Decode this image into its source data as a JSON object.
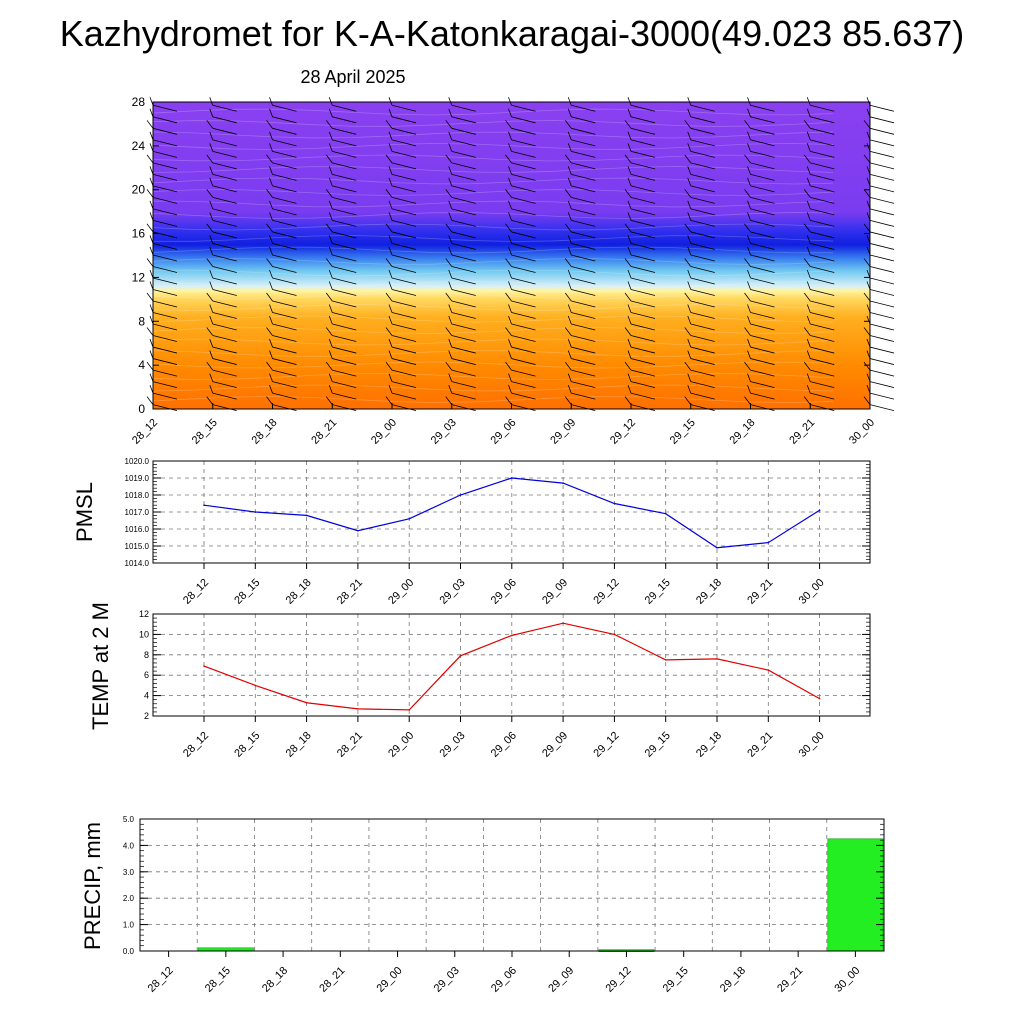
{
  "page": {
    "title": "Kazhydromet for K-A-Katonkaragai-3000(49.023 85.637)",
    "subtitle": "28 April 2025"
  },
  "chart_data": [
    {
      "type": "heatmap",
      "id": "cross-section",
      "x": [
        "28_12",
        "28_15",
        "28_18",
        "28_21",
        "29_00",
        "29_03",
        "29_06",
        "29_09",
        "29_12",
        "29_15",
        "29_18",
        "29_21",
        "30_00"
      ],
      "y_ticks": [
        0,
        4,
        8,
        12,
        16,
        20,
        24,
        28
      ],
      "ylim": [
        0,
        28
      ],
      "overlay": "wind-barbs",
      "colors": {
        "low": "#ff7a00",
        "mid": "#fff08a",
        "transition": "#aee4f5",
        "band": "#1020e0",
        "high": "#8a3cf0"
      }
    },
    {
      "type": "line",
      "id": "pmsl",
      "ylabel": "PMSL",
      "categories": [
        "28_12",
        "28_15",
        "28_18",
        "28_21",
        "29_00",
        "29_03",
        "29_06",
        "29_09",
        "29_12",
        "29_15",
        "29_18",
        "29_21",
        "30_00"
      ],
      "values": [
        1017.4,
        1017.0,
        1016.8,
        1015.9,
        1016.6,
        1018.0,
        1019.0,
        1018.7,
        1017.5,
        1016.9,
        1014.9,
        1015.2,
        1017.1
      ],
      "ylim": [
        1014.0,
        1020.0
      ],
      "y_ticks": [
        "1014.0",
        "1015.0",
        "1016.0",
        "1017.0",
        "1018.0",
        "1019.0",
        "1020.0"
      ],
      "color": "#0000dd",
      "grid": true
    },
    {
      "type": "line",
      "id": "temp",
      "ylabel": "TEMP at 2 M",
      "categories": [
        "28_12",
        "28_15",
        "28_18",
        "28_21",
        "29_00",
        "29_03",
        "29_06",
        "29_09",
        "29_12",
        "29_15",
        "29_18",
        "29_21",
        "30_00"
      ],
      "values": [
        6.9,
        5.0,
        3.3,
        2.7,
        2.6,
        7.9,
        9.9,
        11.1,
        10.0,
        7.5,
        7.6,
        6.5,
        3.7
      ],
      "ylim": [
        2,
        12
      ],
      "y_ticks": [
        "2",
        "4",
        "6",
        "8",
        "10",
        "12"
      ],
      "color": "#e00000",
      "grid": true
    },
    {
      "type": "bar",
      "id": "precip",
      "ylabel": "PRECIP, mm",
      "categories": [
        "28_12",
        "28_15",
        "28_18",
        "28_21",
        "29_00",
        "29_03",
        "29_06",
        "29_09",
        "29_12",
        "29_15",
        "29_18",
        "29_21",
        "30_00"
      ],
      "values": [
        0,
        0.12,
        0,
        0,
        0,
        0,
        0,
        0,
        0.05,
        0,
        0,
        0,
        4.25
      ],
      "ylim": [
        0,
        5
      ],
      "y_ticks": [
        "0.0",
        "1.0",
        "2.0",
        "3.0",
        "4.0",
        "5.0"
      ],
      "color": "#22ee22",
      "grid": true
    }
  ]
}
